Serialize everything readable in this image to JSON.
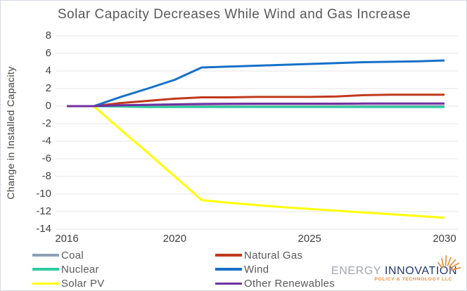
{
  "title": "Solar Capacity Decreases While Wind and Gas Increase",
  "chart_data": {
    "type": "line",
    "title": "Solar Capacity Decreases While Wind and Gas Increase",
    "xlabel": "",
    "ylabel": "Change in Installed Capacity",
    "x": [
      2016,
      2017,
      2018,
      2019,
      2020,
      2021,
      2022,
      2023,
      2024,
      2025,
      2026,
      2027,
      2028,
      2029,
      2030
    ],
    "xticks": [
      "2016",
      "2020",
      "2025",
      "2030"
    ],
    "xtick_years": [
      2016,
      2020,
      2025,
      2030
    ],
    "yticks": [
      8,
      6,
      4,
      2,
      0,
      -2,
      -4,
      -6,
      -8,
      -10,
      -12,
      -14
    ],
    "ylim": [
      -14,
      8
    ],
    "grid": true,
    "legend_position": "bottom-left-two-columns",
    "series": [
      {
        "name": "Coal",
        "color": "#8e9fb3",
        "values": [
          0,
          0,
          0,
          0,
          0,
          0,
          0,
          0,
          0,
          0,
          0,
          0,
          0,
          0,
          0
        ]
      },
      {
        "name": "Nuclear",
        "color": "#2fcc9f",
        "values": [
          0,
          0,
          -0.05,
          -0.1,
          -0.1,
          -0.1,
          -0.1,
          -0.1,
          -0.1,
          -0.1,
          -0.1,
          -0.1,
          -0.1,
          -0.1,
          -0.1
        ]
      },
      {
        "name": "Solar PV",
        "color": "#ffff00",
        "values": [
          0,
          0,
          -2.7,
          -5.3,
          -8.0,
          -10.7,
          -11.0,
          -11.25,
          -11.5,
          -11.7,
          -11.9,
          -12.1,
          -12.3,
          -12.5,
          -12.7
        ]
      },
      {
        "name": "Natural Gas",
        "color": "#c0391b",
        "values": [
          0,
          0,
          0.35,
          0.6,
          0.85,
          1.0,
          1.0,
          1.05,
          1.05,
          1.05,
          1.1,
          1.25,
          1.3,
          1.3,
          1.3
        ]
      },
      {
        "name": "Wind",
        "color": "#1670c8",
        "values": [
          0,
          0,
          1.05,
          2.0,
          3.0,
          4.4,
          4.5,
          4.6,
          4.7,
          4.8,
          4.9,
          5.0,
          5.05,
          5.1,
          5.2
        ]
      },
      {
        "name": "Other Renewables",
        "color": "#7030a0",
        "values": [
          0,
          0,
          0.1,
          0.15,
          0.2,
          0.25,
          0.27,
          0.28,
          0.28,
          0.28,
          0.28,
          0.3,
          0.3,
          0.3,
          0.3
        ]
      }
    ],
    "legend_columns": [
      [
        "Coal",
        "Nuclear",
        "Solar PV"
      ],
      [
        "Natural Gas",
        "Wind",
        "Other Renewables"
      ]
    ]
  },
  "colors": {
    "gridline": "#e6e6e6",
    "title_text": "#595959",
    "axis_text": "#404040",
    "legend_text": "#595959",
    "logo_orange": "#ef8c35",
    "logo_navy": "#223a70",
    "logo_gray": "#a2a6ab"
  },
  "logo": {
    "word1": "ENERGY ",
    "word2": "INNOVATION",
    "subtitle": "POLICY & TECHNOLOGY LLC",
    "icon": "sunburst-rays-icon"
  }
}
